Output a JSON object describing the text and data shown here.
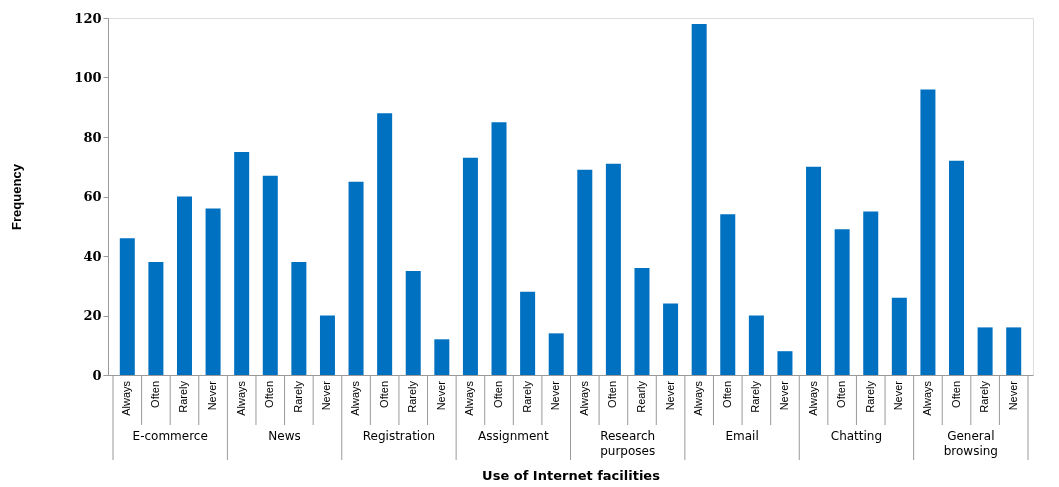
{
  "chart_data": {
    "type": "bar",
    "ylabel": "Frequency",
    "xlabel": "Use of Internet facilities",
    "categories": [
      "Always",
      "Often",
      "Rarely",
      "Never",
      "Always",
      "Often",
      "Rarely",
      "Never",
      "Always",
      "Often",
      "Rarely",
      "Never",
      "Always",
      "Often",
      "Rarely",
      "Never",
      "Always",
      "Often",
      "Rearly",
      "Never",
      "Always",
      "Often",
      "Rarely",
      "Never",
      "Always",
      "Often",
      "Rarely",
      "Never",
      "Always",
      "Often",
      "Rarely",
      "Never"
    ],
    "values": [
      46,
      38,
      60,
      56,
      75,
      67,
      38,
      20,
      65,
      88,
      35,
      12,
      73,
      85,
      28,
      14,
      69,
      71,
      36,
      24,
      118,
      54,
      20,
      8,
      70,
      49,
      55,
      26,
      96,
      72,
      16,
      16
    ],
    "color": "#0070c0",
    "ylim": [
      0,
      120
    ],
    "yticks": [
      0,
      20,
      40,
      60,
      80,
      100,
      120
    ],
    "annotations": [
      "E-commerce",
      "News",
      "Registration",
      "Assignment",
      "Research purposes",
      "Email",
      "Chatting",
      "General browsing"
    ],
    "grid": false
  }
}
